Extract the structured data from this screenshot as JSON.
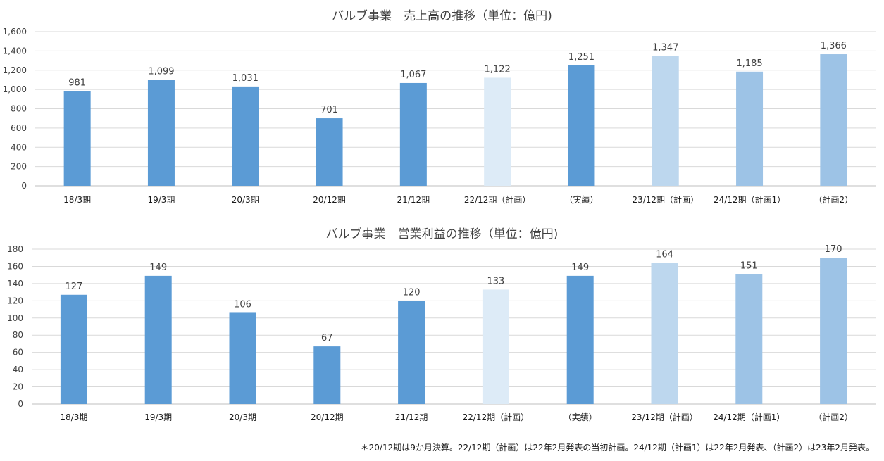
{
  "chart_data": [
    {
      "type": "bar",
      "title": "バルブ事業　売上高の推移（単位：億円)",
      "categories": [
        "18/3期",
        "19/3期",
        "20/3期",
        "20/12期",
        "21/12期",
        "22/12期（計画）",
        "（実績）",
        "23/12期（計画）",
        "24/12期（計画1）",
        "（計画2）"
      ],
      "values": [
        981,
        1099,
        1031,
        701,
        1067,
        1122,
        1251,
        1347,
        1185,
        1366
      ],
      "value_labels": [
        "981",
        "1,099",
        "1,031",
        "701",
        "1,067",
        "1,122",
        "1,251",
        "1,347",
        "1,185",
        "1,366"
      ],
      "ylim": [
        0,
        1600
      ],
      "yticks": [
        0,
        200,
        400,
        600,
        800,
        1000,
        1200,
        1400,
        1600
      ],
      "ytick_labels": [
        "0",
        "200",
        "400",
        "600",
        "800",
        "1,000",
        "1,200",
        "1,400",
        "1,600"
      ],
      "grid": true,
      "bar_colors": [
        "#5b9bd5",
        "#5b9bd5",
        "#5b9bd5",
        "#5b9bd5",
        "#5b9bd5",
        "#ddebf7",
        "#5b9bd5",
        "#bdd7ee",
        "#9dc3e6",
        "#9dc3e6"
      ]
    },
    {
      "type": "bar",
      "title": "バルブ事業　営業利益の推移（単位：億円)",
      "categories": [
        "18/3期",
        "19/3期",
        "20/3期",
        "20/12期",
        "21/12期",
        "22/12期（計画）",
        "（実績）",
        "23/12期（計画）",
        "24/12期（計画1）",
        "（計画2）"
      ],
      "values": [
        127,
        149,
        106,
        67,
        120,
        133,
        149,
        164,
        151,
        170
      ],
      "value_labels": [
        "127",
        "149",
        "106",
        "67",
        "120",
        "133",
        "149",
        "164",
        "151",
        "170"
      ],
      "ylim": [
        0,
        180
      ],
      "yticks": [
        0,
        20,
        40,
        60,
        80,
        100,
        120,
        140,
        160,
        180
      ],
      "ytick_labels": [
        "0",
        "20",
        "40",
        "60",
        "80",
        "100",
        "120",
        "140",
        "160",
        "180"
      ],
      "grid": true,
      "bar_colors": [
        "#5b9bd5",
        "#5b9bd5",
        "#5b9bd5",
        "#5b9bd5",
        "#5b9bd5",
        "#ddebf7",
        "#5b9bd5",
        "#bdd7ee",
        "#9dc3e6",
        "#9dc3e6"
      ]
    }
  ],
  "colors": {
    "grid": "#d9d9d9",
    "axis": "#bfbfbf"
  },
  "footnote": "＊20/12期は9か月決算。22/12期（計画）は22年2月発表の当初計画。24/12期（計画1）は22年2月発表、（計画2）は23年2月発表。"
}
